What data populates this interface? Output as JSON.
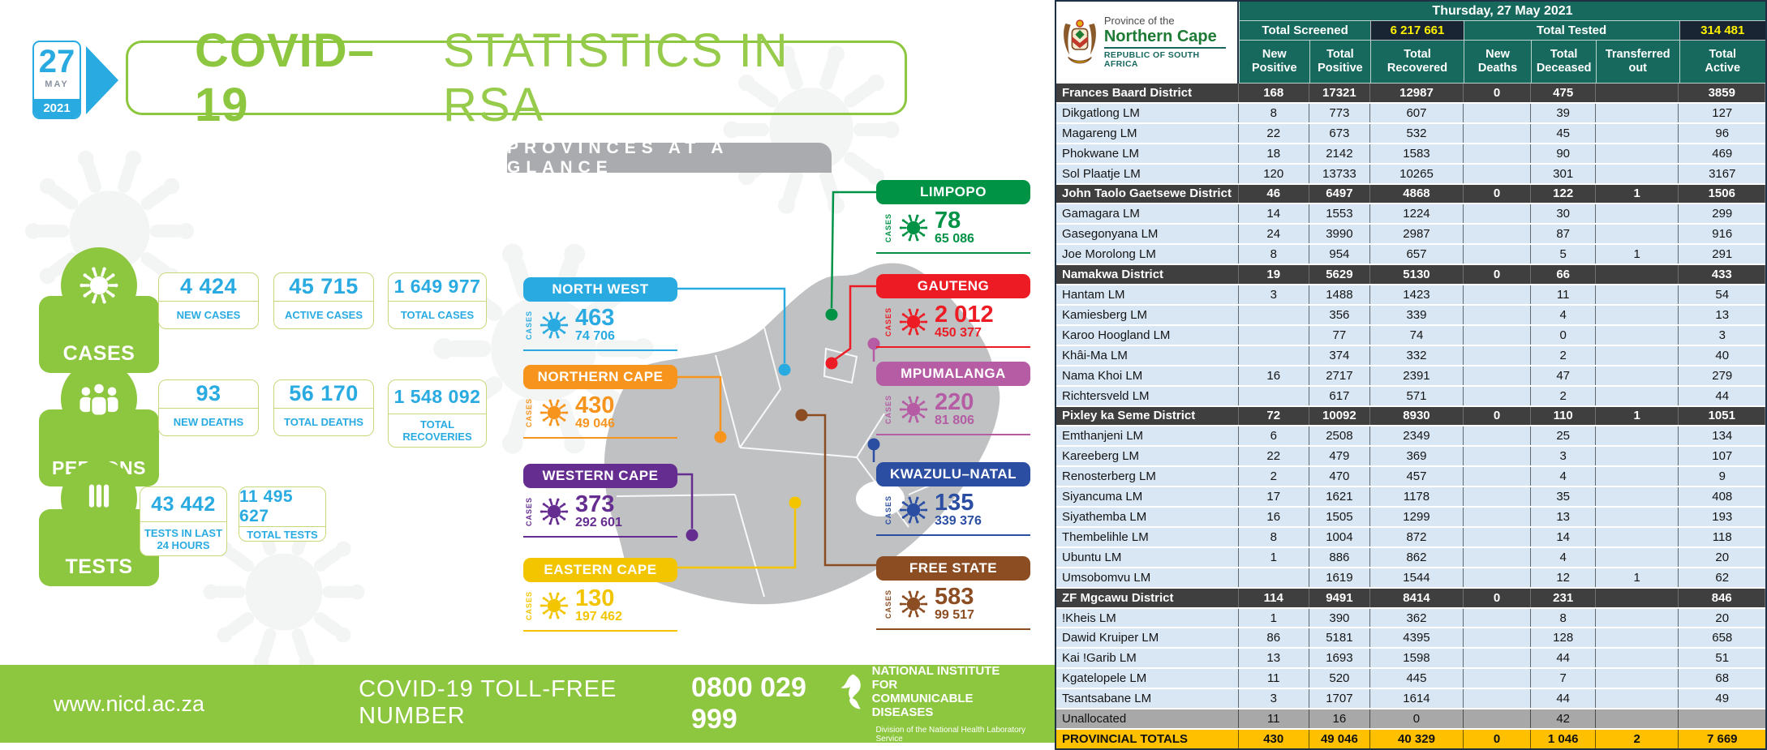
{
  "infographic": {
    "date_badge": {
      "day": "27",
      "month": "MAY",
      "year": "2021"
    },
    "title": {
      "primary": "COVID–19",
      "secondary": "STATISTICS IN RSA"
    },
    "accent_blue": "#29ABE2",
    "brand_green": "#8DC63F",
    "sections": [
      {
        "label": "CASES",
        "icon": "virus-icon",
        "stats": [
          {
            "value": "4 424",
            "label": "NEW CASES"
          },
          {
            "value": "45 715",
            "label": "ACTIVE CASES"
          },
          {
            "value": "1 649 977",
            "label": "TOTAL CASES"
          }
        ]
      },
      {
        "label": "PERSONS",
        "icon": "people-icon",
        "stats": [
          {
            "value": "93",
            "label": "NEW DEATHS"
          },
          {
            "value": "56 170",
            "label": "TOTAL DEATHS"
          },
          {
            "value": "1 548 092",
            "label": "TOTAL RECOVERIES"
          }
        ]
      },
      {
        "label": "TESTS",
        "icon": "test-tubes-icon",
        "stats": [
          {
            "value": "43 442",
            "label": "TESTS IN LAST 24 HOURS"
          },
          {
            "value": "11 495 627",
            "label": "TOTAL TESTS"
          }
        ]
      }
    ],
    "map": {
      "header": "PROVINCES AT A GLANCE",
      "cases_caption": "CASES",
      "provinces": [
        {
          "name": "NORTH WEST",
          "new_cases": "463",
          "total_cases": "74 706",
          "color": "#29ABE2"
        },
        {
          "name": "NORTHERN CAPE",
          "new_cases": "430",
          "total_cases": "49 046",
          "color": "#F7941D"
        },
        {
          "name": "WESTERN CAPE",
          "new_cases": "373",
          "total_cases": "292 601",
          "color": "#662D91"
        },
        {
          "name": "EASTERN CAPE",
          "new_cases": "130",
          "total_cases": "197 462",
          "color": "#F2C500"
        },
        {
          "name": "LIMPOPO",
          "new_cases": "78",
          "total_cases": "65 086",
          "color": "#009245"
        },
        {
          "name": "GAUTENG",
          "new_cases": "2 012",
          "total_cases": "450 377",
          "color": "#ED1C24"
        },
        {
          "name": "MPUMALANGA",
          "new_cases": "220",
          "total_cases": "81 806",
          "color": "#B55CA5"
        },
        {
          "name": "KWAZULU–NATAL",
          "new_cases": "135",
          "total_cases": "339 376",
          "color": "#2B4EA2"
        },
        {
          "name": "FREE STATE",
          "new_cases": "583",
          "total_cases": "99 517",
          "color": "#8C4D22"
        }
      ]
    },
    "footer": {
      "website": "www.nicd.ac.za",
      "tollfree_label": "COVID-19 TOLL-FREE NUMBER",
      "tollfree_number": "0800 029 999",
      "org_line1": "NATIONAL INSTITUTE FOR",
      "org_line2": "COMMUNICABLE DISEASES",
      "org_sub": "Division of the National Health Laboratory Service"
    }
  },
  "table": {
    "logo": {
      "line1": "Province of the",
      "line2": "Northern Cape",
      "line3": "REPUBLIC OF SOUTH AFRICA"
    },
    "date": "Thursday, 27 May 2021",
    "total_screened_label": "Total Screened",
    "total_screened_value": "6 217 661",
    "total_tested_label": "Total Tested",
    "total_tested_value": "314 481",
    "header_teal": "#17695E",
    "value_cell_bg": "#1A2533",
    "value_text_color": "#FFF200",
    "totals_bg": "#FFC000",
    "columns": [
      "New|Positive",
      "Total|Positive",
      "Total|Recovered",
      "New|Deaths",
      "Total|Deceased",
      "Transferred|out",
      "Total|Active"
    ],
    "rows": [
      {
        "name": "Frances Baard District",
        "t": "d",
        "v": [
          "168",
          "17321",
          "12987",
          "0",
          "475",
          "",
          "3859"
        ]
      },
      {
        "name": "Dikgatlong LM",
        "t": "l",
        "v": [
          "8",
          "773",
          "607",
          "",
          "39",
          "",
          "127"
        ]
      },
      {
        "name": "Magareng LM",
        "t": "l",
        "v": [
          "22",
          "673",
          "532",
          "",
          "45",
          "",
          "96"
        ]
      },
      {
        "name": "Phokwane LM",
        "t": "l",
        "v": [
          "18",
          "2142",
          "1583",
          "",
          "90",
          "",
          "469"
        ]
      },
      {
        "name": "Sol Plaatje LM",
        "t": "l",
        "v": [
          "120",
          "13733",
          "10265",
          "",
          "301",
          "",
          "3167"
        ]
      },
      {
        "name": "John Taolo Gaetsewe District",
        "t": "d",
        "v": [
          "46",
          "6497",
          "4868",
          "0",
          "122",
          "1",
          "1506"
        ]
      },
      {
        "name": "Gamagara LM",
        "t": "l",
        "v": [
          "14",
          "1553",
          "1224",
          "",
          "30",
          "",
          "299"
        ]
      },
      {
        "name": "Gasegonyana LM",
        "t": "l",
        "v": [
          "24",
          "3990",
          "2987",
          "",
          "87",
          "",
          "916"
        ]
      },
      {
        "name": "Joe Morolong LM",
        "t": "l",
        "v": [
          "8",
          "954",
          "657",
          "",
          "5",
          "1",
          "291"
        ]
      },
      {
        "name": "Namakwa District",
        "t": "d",
        "v": [
          "19",
          "5629",
          "5130",
          "0",
          "66",
          "",
          "433"
        ]
      },
      {
        "name": "Hantam LM",
        "t": "l",
        "v": [
          "3",
          "1488",
          "1423",
          "",
          "11",
          "",
          "54"
        ]
      },
      {
        "name": "Kamiesberg LM",
        "t": "l",
        "v": [
          "",
          "356",
          "339",
          "",
          "4",
          "",
          "13"
        ]
      },
      {
        "name": "Karoo Hoogland LM",
        "t": "l",
        "v": [
          "",
          "77",
          "74",
          "",
          "0",
          "",
          "3"
        ]
      },
      {
        "name": "Khâi-Ma LM",
        "t": "l",
        "v": [
          "",
          "374",
          "332",
          "",
          "2",
          "",
          "40"
        ]
      },
      {
        "name": "Nama Khoi LM",
        "t": "l",
        "v": [
          "16",
          "2717",
          "2391",
          "",
          "47",
          "",
          "279"
        ]
      },
      {
        "name": "Richtersveld LM",
        "t": "l",
        "v": [
          "",
          "617",
          "571",
          "",
          "2",
          "",
          "44"
        ]
      },
      {
        "name": "Pixley ka Seme District",
        "t": "d",
        "v": [
          "72",
          "10092",
          "8930",
          "0",
          "110",
          "1",
          "1051"
        ]
      },
      {
        "name": "Emthanjeni LM",
        "t": "l",
        "v": [
          "6",
          "2508",
          "2349",
          "",
          "25",
          "",
          "134"
        ]
      },
      {
        "name": "Kareeberg LM",
        "t": "l",
        "v": [
          "22",
          "479",
          "369",
          "",
          "3",
          "",
          "107"
        ]
      },
      {
        "name": "Renosterberg LM",
        "t": "l",
        "v": [
          "2",
          "470",
          "457",
          "",
          "4",
          "",
          "9"
        ]
      },
      {
        "name": "Siyancuma LM",
        "t": "l",
        "v": [
          "17",
          "1621",
          "1178",
          "",
          "35",
          "",
          "408"
        ]
      },
      {
        "name": "Siyathemba LM",
        "t": "l",
        "v": [
          "16",
          "1505",
          "1299",
          "",
          "13",
          "",
          "193"
        ]
      },
      {
        "name": "Thembelihle LM",
        "t": "l",
        "v": [
          "8",
          "1004",
          "872",
          "",
          "14",
          "",
          "118"
        ]
      },
      {
        "name": "Ubuntu LM",
        "t": "l",
        "v": [
          "1",
          "886",
          "862",
          "",
          "4",
          "",
          "20"
        ]
      },
      {
        "name": "Umsobomvu LM",
        "t": "l",
        "v": [
          "",
          "1619",
          "1544",
          "",
          "12",
          "1",
          "62"
        ]
      },
      {
        "name": "ZF Mgcawu District",
        "t": "d",
        "v": [
          "114",
          "9491",
          "8414",
          "0",
          "231",
          "",
          "846"
        ]
      },
      {
        "name": "!Kheis LM",
        "t": "l",
        "v": [
          "1",
          "390",
          "362",
          "",
          "8",
          "",
          "20"
        ]
      },
      {
        "name": "Dawid Kruiper LM",
        "t": "l",
        "v": [
          "86",
          "5181",
          "4395",
          "",
          "128",
          "",
          "658"
        ]
      },
      {
        "name": "Kai !Garib LM",
        "t": "l",
        "v": [
          "13",
          "1693",
          "1598",
          "",
          "44",
          "",
          "51"
        ]
      },
      {
        "name": "Kgatelopele LM",
        "t": "l",
        "v": [
          "11",
          "520",
          "445",
          "",
          "7",
          "",
          "68"
        ]
      },
      {
        "name": "Tsantsabane LM",
        "t": "l",
        "v": [
          "3",
          "1707",
          "1614",
          "",
          "44",
          "",
          "49"
        ]
      },
      {
        "name": "Unallocated",
        "t": "u",
        "v": [
          "11",
          "16",
          "0",
          "",
          "42",
          "",
          ""
        ]
      },
      {
        "name": "PROVINCIAL TOTALS",
        "t": "t",
        "v": [
          "430",
          "49 046",
          "40 329",
          "0",
          "1 046",
          "2",
          "7 669"
        ]
      }
    ]
  }
}
